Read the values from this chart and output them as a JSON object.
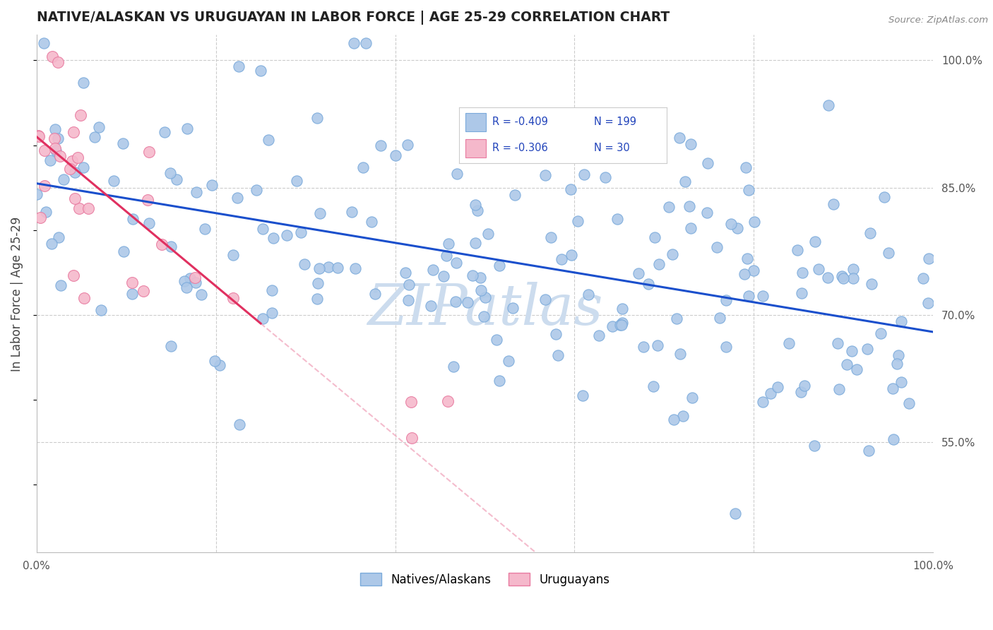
{
  "title": "NATIVE/ALASKAN VS URUGUAYAN IN LABOR FORCE | AGE 25-29 CORRELATION CHART",
  "source": "Source: ZipAtlas.com",
  "ylabel": "In Labor Force | Age 25-29",
  "xlim": [
    0.0,
    1.0
  ],
  "ylim": [
    0.42,
    1.03
  ],
  "ytick_positions": [
    0.55,
    0.7,
    0.85,
    1.0
  ],
  "yticklabels": [
    "55.0%",
    "70.0%",
    "85.0%",
    "100.0%"
  ],
  "R_blue": -0.409,
  "N_blue": 199,
  "R_pink": -0.306,
  "N_pink": 30,
  "blue_color": "#adc8e8",
  "blue_edge": "#7aaadb",
  "pink_color": "#f5b8cb",
  "pink_edge": "#e87aa0",
  "trendline_blue": "#1a4fcc",
  "trendline_pink": "#e03060",
  "trendline_pink_dashed": "#f0a0b8",
  "watermark": "ZIPatlas",
  "watermark_color": "#ccdcee",
  "legend_label_blue": "Natives/Alaskans",
  "legend_label_pink": "Uruguayans",
  "background_color": "#ffffff",
  "grid_color": "#cccccc",
  "blue_intercept": 0.855,
  "blue_slope": -0.175,
  "pink_intercept": 0.91,
  "pink_slope": -0.88
}
